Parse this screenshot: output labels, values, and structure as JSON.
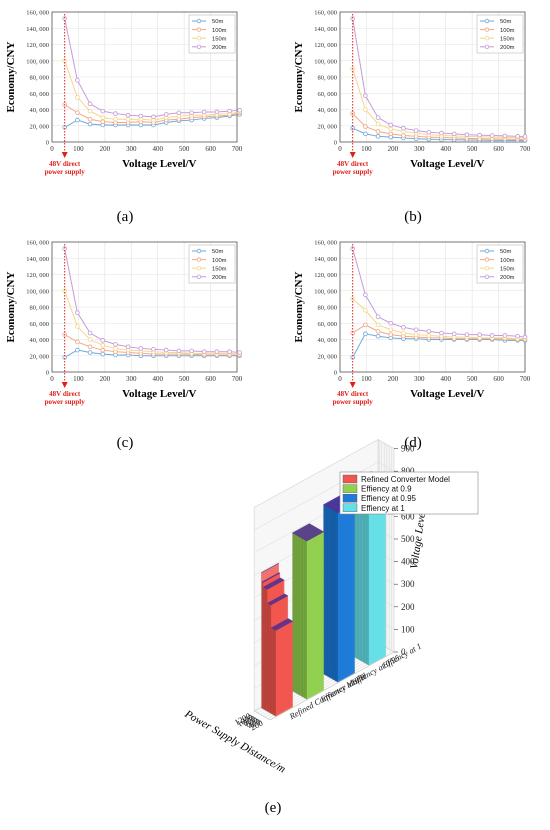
{
  "chart_data": [
    {
      "type": "line",
      "panel": "(a)",
      "xlabel": "Voltage Level/V",
      "ylabel": "Economy/CNY",
      "xlim": [
        0,
        700
      ],
      "ylim": [
        0,
        160000
      ],
      "xticks": [
        0,
        100,
        200,
        300,
        400,
        500,
        600,
        700
      ],
      "yticks": [
        "0",
        "20, 000",
        "40, 000",
        "60, 000",
        "80, 000",
        "100, 000",
        "120, 000",
        "140, 000",
        "160, 000"
      ],
      "legend_position": "top-right",
      "annotation": [
        "48V direct",
        "power supply"
      ],
      "x": [
        48,
        96,
        144,
        192,
        240,
        288,
        336,
        384,
        432,
        480,
        528,
        576,
        624,
        672,
        710
      ],
      "series": [
        {
          "name": "50m",
          "values": [
            18000,
            27000,
            22000,
            21000,
            21000,
            21000,
            21000,
            21000,
            24000,
            26000,
            27000,
            29000,
            30000,
            32000,
            34000
          ]
        },
        {
          "name": "100m",
          "values": [
            46000,
            36000,
            28000,
            25000,
            24000,
            24000,
            25000,
            24000,
            27000,
            28000,
            30000,
            31000,
            32000,
            33000,
            36000
          ]
        },
        {
          "name": "150m",
          "values": [
            100000,
            55000,
            38000,
            30000,
            28000,
            28000,
            28000,
            27000,
            30000,
            32000,
            33000,
            33000,
            34000,
            35000,
            37000
          ]
        },
        {
          "name": "200m",
          "values": [
            152000,
            76000,
            47000,
            38000,
            35000,
            33000,
            32000,
            31000,
            34000,
            36000,
            36000,
            37000,
            37000,
            38000,
            39000
          ]
        }
      ]
    },
    {
      "type": "line",
      "panel": "(b)",
      "xlabel": "Voltage Level/V",
      "ylabel": "Economy/CNY",
      "xlim": [
        0,
        700
      ],
      "ylim": [
        0,
        160000
      ],
      "xticks": [
        0,
        100,
        200,
        300,
        400,
        500,
        600,
        700
      ],
      "yticks": [
        "0",
        "20, 000",
        "40, 000",
        "60, 000",
        "80, 000",
        "100, 000",
        "120, 000",
        "140, 000",
        "160, 000"
      ],
      "legend_position": "top-right",
      "annotation": [
        "48V direct",
        "power supply"
      ],
      "x": [
        48,
        96,
        144,
        192,
        240,
        288,
        336,
        384,
        432,
        480,
        528,
        576,
        624,
        672,
        700
      ],
      "series": [
        {
          "name": "50m",
          "values": [
            17000,
            10000,
            7000,
            6000,
            5000,
            4000,
            3500,
            3000,
            2800,
            2500,
            2300,
            2000,
            2000,
            1800,
            1700
          ]
        },
        {
          "name": "100m",
          "values": [
            35000,
            19000,
            13000,
            10000,
            8000,
            7000,
            6000,
            5500,
            5000,
            4500,
            4000,
            3800,
            3600,
            3400,
            3200
          ]
        },
        {
          "name": "150m",
          "values": [
            90000,
            40000,
            22000,
            16000,
            13000,
            11000,
            9000,
            8000,
            7500,
            7000,
            6500,
            6000,
            5800,
            5500,
            5200
          ]
        },
        {
          "name": "200m",
          "values": [
            152000,
            57000,
            30000,
            21000,
            17000,
            14000,
            12000,
            11000,
            10000,
            9000,
            8500,
            8000,
            7500,
            7000,
            6800
          ]
        }
      ]
    },
    {
      "type": "line",
      "panel": "(c)",
      "xlabel": "Voltage Level/V",
      "ylabel": "Economy/CNY",
      "xlim": [
        0,
        700
      ],
      "ylim": [
        0,
        160000
      ],
      "xticks": [
        0,
        100,
        200,
        300,
        400,
        500,
        600,
        700
      ],
      "yticks": [
        "0",
        "20, 000",
        "40, 000",
        "60, 000",
        "80, 000",
        "100, 000",
        "120, 000",
        "140, 000",
        "160, 000"
      ],
      "legend_position": "top-right",
      "annotation": [
        "48V direct",
        "power supply"
      ],
      "x": [
        48,
        96,
        144,
        192,
        240,
        288,
        336,
        384,
        432,
        480,
        528,
        576,
        624,
        672,
        710
      ],
      "series": [
        {
          "name": "50m",
          "values": [
            18000,
            27000,
            24000,
            22000,
            21000,
            21000,
            20000,
            20000,
            20000,
            20000,
            20000,
            20000,
            20000,
            20000,
            20000
          ]
        },
        {
          "name": "100m",
          "values": [
            46000,
            37000,
            31000,
            27000,
            25000,
            24000,
            23000,
            22000,
            22000,
            22000,
            22000,
            21000,
            21000,
            21000,
            21000
          ]
        },
        {
          "name": "150m",
          "values": [
            100000,
            56000,
            40000,
            33000,
            29000,
            27000,
            26000,
            25000,
            24000,
            24000,
            23000,
            23000,
            23000,
            23000,
            22000
          ]
        },
        {
          "name": "200m",
          "values": [
            152000,
            73000,
            48000,
            39000,
            34000,
            31000,
            29000,
            28000,
            27000,
            26000,
            26000,
            25000,
            25000,
            25000,
            24000
          ]
        }
      ]
    },
    {
      "type": "line",
      "panel": "(d)",
      "xlabel": "Voltage Level/V",
      "ylabel": "Economy/CNY",
      "xlim": [
        0,
        700
      ],
      "ylim": [
        0,
        160000
      ],
      "xticks": [
        0,
        100,
        200,
        300,
        400,
        500,
        600,
        700
      ],
      "yticks": [
        "0",
        "20, 000",
        "40, 000",
        "60, 000",
        "80, 000",
        "100, 000",
        "120, 000",
        "140, 000",
        "160, 000"
      ],
      "legend_position": "top-right",
      "annotation": [
        "48V direct",
        "power supply"
      ],
      "x": [
        48,
        96,
        144,
        192,
        240,
        288,
        336,
        384,
        432,
        480,
        528,
        576,
        624,
        672,
        700
      ],
      "series": [
        {
          "name": "50m",
          "values": [
            18000,
            47000,
            44000,
            42000,
            41000,
            41000,
            40000,
            40000,
            40000,
            40000,
            40000,
            40000,
            39000,
            39000,
            39000
          ]
        },
        {
          "name": "100m",
          "values": [
            48000,
            58000,
            50000,
            46000,
            44000,
            43000,
            42000,
            42000,
            41000,
            41000,
            41000,
            41000,
            41000,
            40000,
            40000
          ]
        },
        {
          "name": "150m",
          "values": [
            90000,
            76000,
            58000,
            52000,
            48000,
            46000,
            45000,
            44000,
            43000,
            43000,
            42000,
            42000,
            42000,
            41000,
            41000
          ]
        },
        {
          "name": "200m",
          "values": [
            152000,
            95000,
            68000,
            60000,
            55000,
            52000,
            50000,
            48000,
            47000,
            46000,
            46000,
            45000,
            45000,
            44000,
            43000
          ]
        }
      ]
    },
    {
      "type": "bar",
      "panel": "(e)",
      "subtype": "3d-bar",
      "xlabel": "Power Supply Distance/m",
      "zlabel": "Voltage Level/V",
      "xticks": [
        "200",
        "400",
        "600",
        "800",
        "1000",
        "1200"
      ],
      "zticks": [
        "0",
        "100",
        "200",
        "300",
        "400",
        "500",
        "600",
        "700",
        "800",
        "900"
      ],
      "legend_position": "top",
      "x": [
        50,
        100,
        150,
        200,
        250,
        300,
        350,
        400,
        450,
        500,
        550,
        600,
        650,
        700,
        750,
        800,
        850,
        900,
        950,
        1000,
        1050,
        1100,
        1150,
        1200
      ],
      "series": [
        {
          "name": "Refined Converter Model",
          "color": "#f2574f",
          "values": [
            380,
            380,
            380,
            380,
            380,
            380,
            380,
            380,
            480,
            480,
            480,
            480,
            480,
            480,
            540,
            540,
            540,
            540,
            540,
            540,
            540,
            560,
            560,
            600
          ]
        },
        {
          "name": "Effiency at 0.9",
          "color": "#92d050",
          "values": [
            700,
            700,
            700,
            700,
            700,
            700,
            700,
            700,
            700,
            700,
            700,
            700,
            700,
            700,
            700,
            700,
            700,
            700,
            700,
            700,
            700,
            700,
            700,
            700
          ]
        },
        {
          "name": "Effiency at 0.95",
          "color": "#1e7bd8",
          "values": [
            750,
            750,
            750,
            750,
            750,
            750,
            750,
            750,
            750,
            750,
            750,
            750,
            750,
            750,
            750,
            750,
            750,
            750,
            750,
            750,
            750,
            750,
            750,
            750
          ]
        },
        {
          "name": "Effiency at 1",
          "color": "#66e0e8",
          "values": [
            780,
            780,
            780,
            780,
            780,
            780,
            780,
            780,
            780,
            780,
            780,
            780,
            780,
            780,
            780,
            780,
            780,
            780,
            780,
            780,
            780,
            780,
            780,
            780
          ]
        }
      ]
    }
  ],
  "colors": {
    "series_50m": "#6fa8dc",
    "series_100m": "#f4a582",
    "series_150m": "#f6d58a",
    "series_200m": "#c59ad8",
    "annotation": "#e0201b"
  },
  "captions": [
    "(a)",
    "(b)",
    "(c)",
    "(d)",
    "(e)"
  ]
}
